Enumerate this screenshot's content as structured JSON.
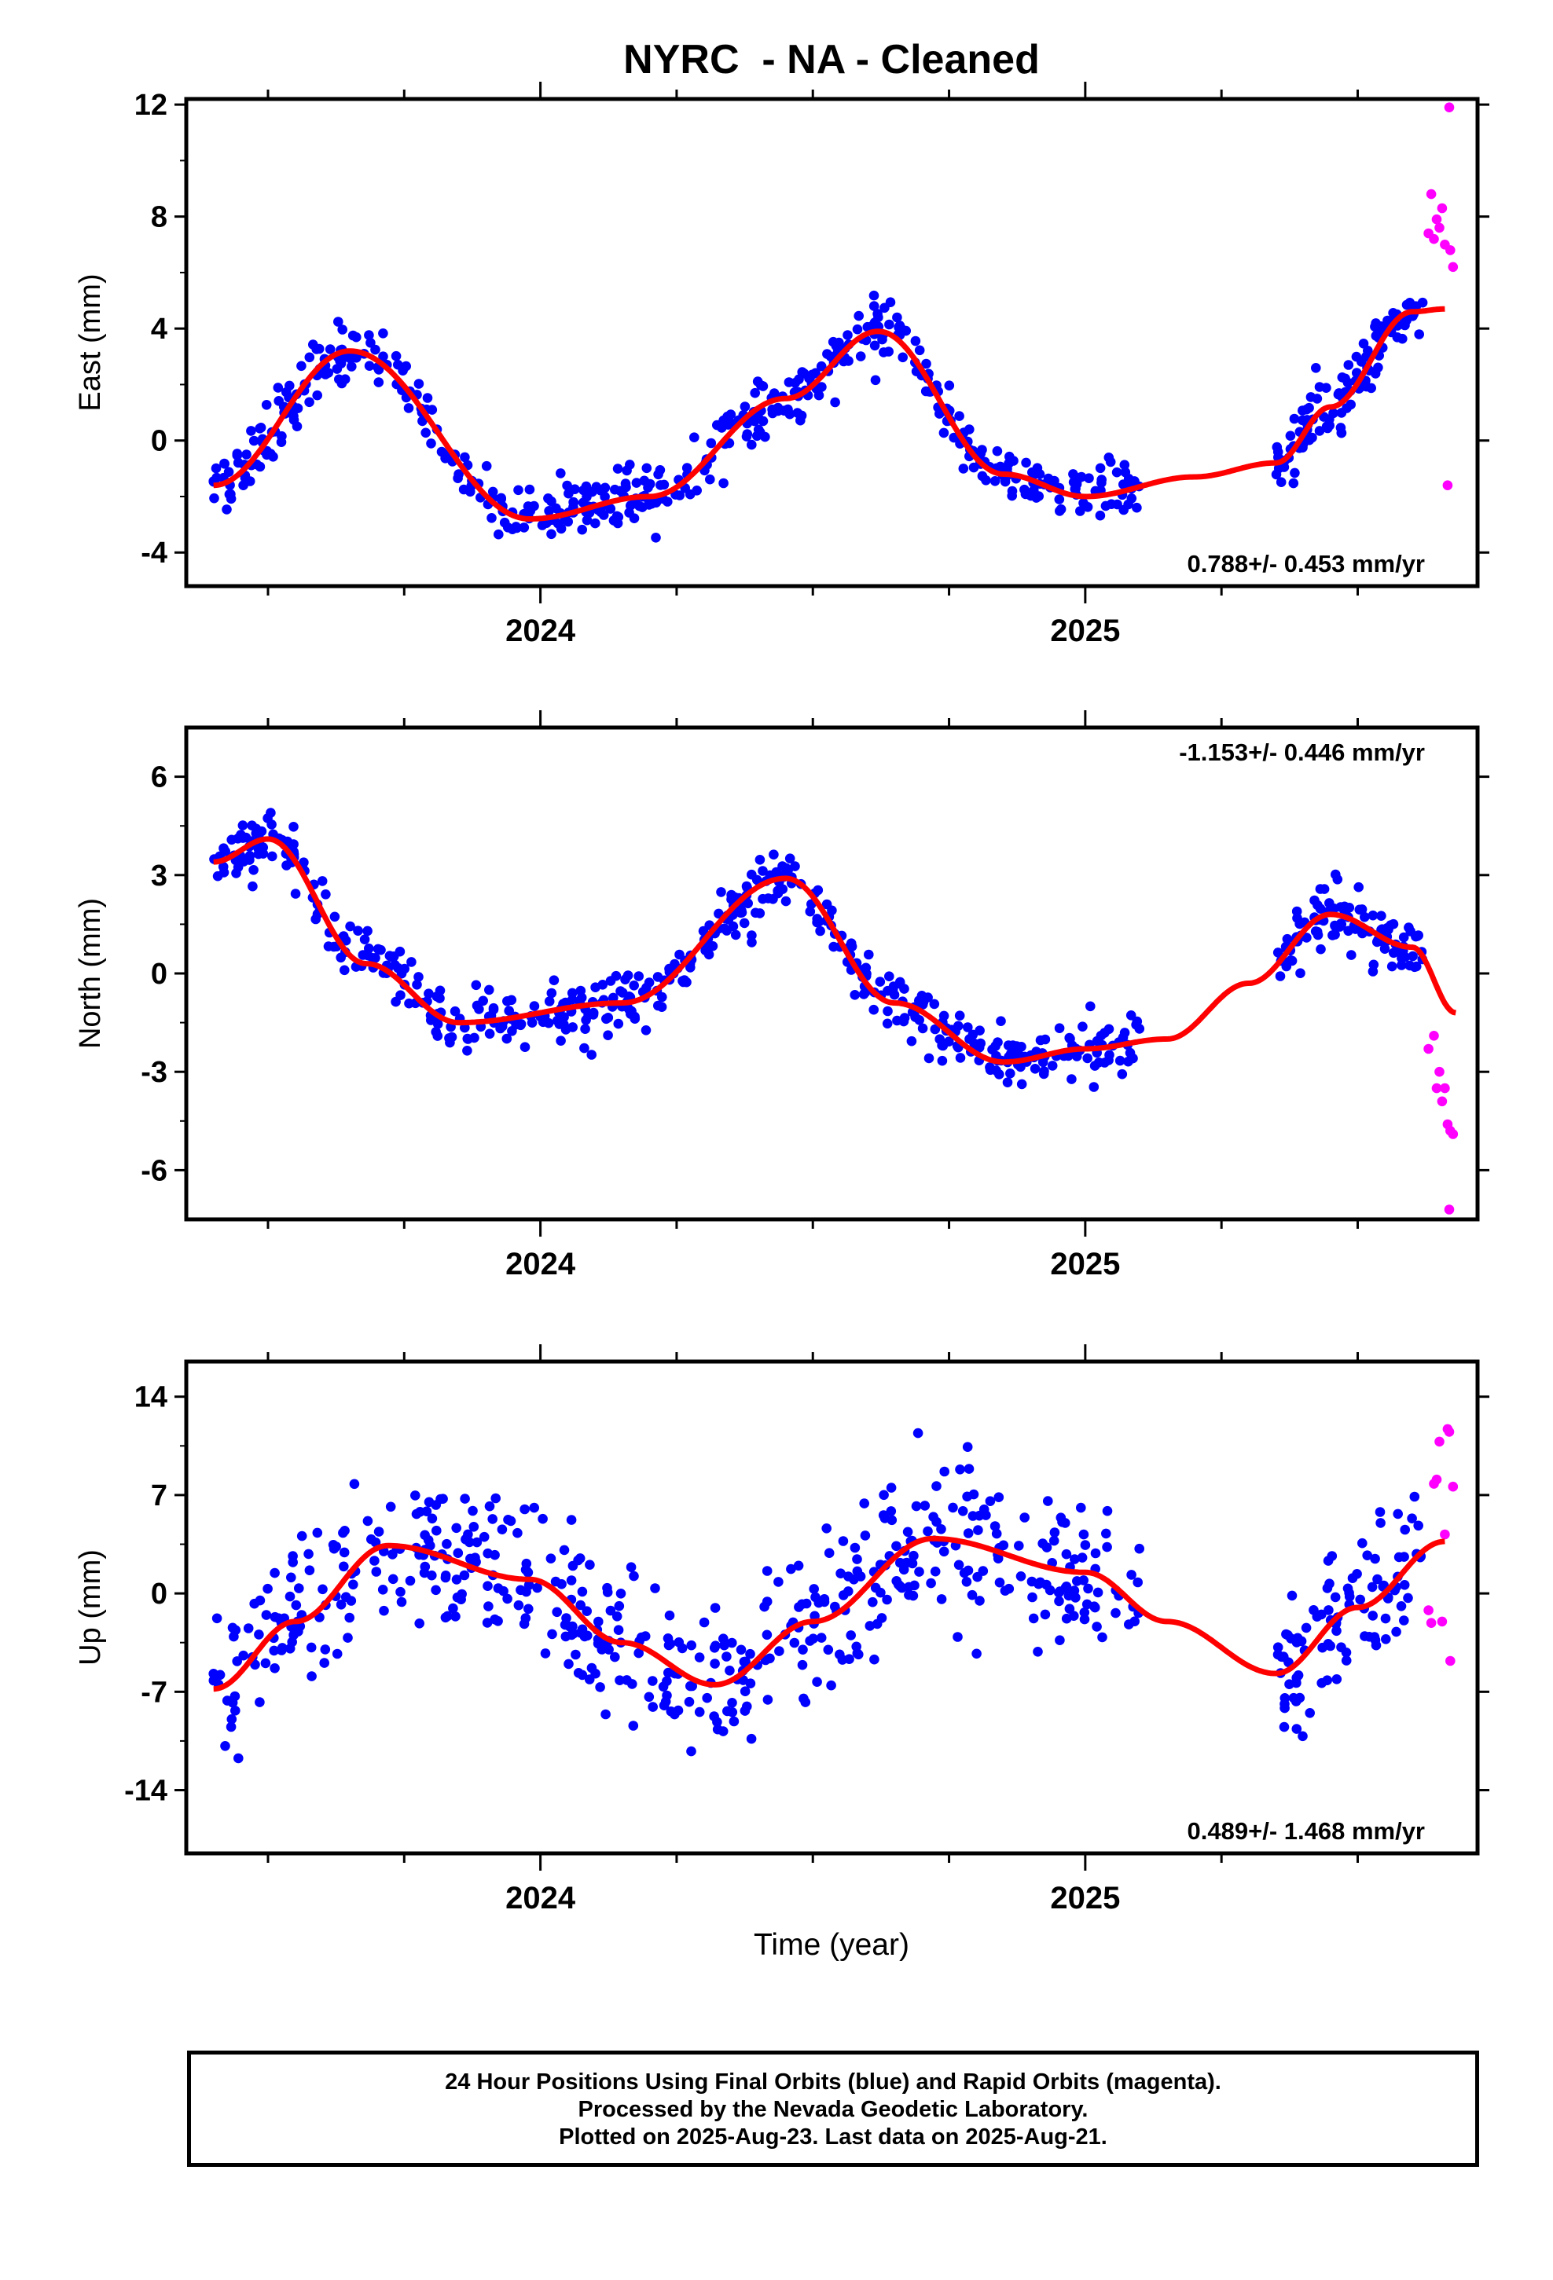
{
  "title": "NYRC  - NA - Cleaned",
  "xlabel": "Time (year)",
  "footer": {
    "line1": "24 Hour Positions Using Final Orbits (blue) and Rapid Orbits (magenta).",
    "line2": "Processed by the Nevada Geodetic Laboratory.",
    "line3": "Plotted on 2025-Aug-23. Last data on 2025-Aug-21."
  },
  "colors": {
    "final": "#0000ff",
    "rapid": "#ff00ff",
    "fit": "#ff0000",
    "frame": "#000000"
  },
  "chart_data": [
    {
      "type": "scatter",
      "ylabel": "East (mm)",
      "rate": "0.788+/- 0.453 mm/yr",
      "rate_position": "bottom-right",
      "xlim": [
        2023.35,
        2025.72
      ],
      "ylim": [
        -5.2,
        12.2
      ],
      "yticks": [
        -4,
        0,
        4,
        8,
        12
      ],
      "yticklabels": [
        "-4",
        "0",
        "4",
        "8",
        "12"
      ],
      "xticks": [
        2024,
        2025
      ],
      "xticklabels": [
        "2024",
        "2025"
      ],
      "fit": {
        "x": [
          2023.4,
          2023.65,
          2023.98,
          2024.2,
          2024.45,
          2024.62,
          2024.85,
          2025.0,
          2025.2,
          2025.35,
          2025.45,
          2025.6,
          2025.66
        ],
        "y": [
          -1.6,
          3.2,
          -2.8,
          -2.0,
          1.5,
          3.9,
          -1.2,
          -2.0,
          -1.3,
          -0.8,
          1.2,
          4.6,
          4.7
        ]
      },
      "final_points": {
        "x_range": [
          2023.4,
          2025.1
        ],
        "gap": [
          2025.1,
          2025.35
        ],
        "x_range2": [
          2025.35,
          2025.62
        ],
        "scatter": 0.9,
        "count": 620
      },
      "rapid_points": [
        [
          2025.63,
          7.4
        ],
        [
          2025.635,
          8.8
        ],
        [
          2025.64,
          7.2
        ],
        [
          2025.645,
          7.9
        ],
        [
          2025.65,
          7.6
        ],
        [
          2025.655,
          8.3
        ],
        [
          2025.66,
          7.0
        ],
        [
          2025.665,
          -1.6
        ],
        [
          2025.668,
          11.9
        ],
        [
          2025.67,
          6.8
        ],
        [
          2025.675,
          6.2
        ]
      ]
    },
    {
      "type": "scatter",
      "ylabel": "North (mm)",
      "rate": "-1.153+/- 0.446 mm/yr",
      "rate_position": "top-right",
      "xlim": [
        2023.35,
        2025.72
      ],
      "ylim": [
        -7.5,
        7.5
      ],
      "yticks": [
        -6,
        -3,
        0,
        3,
        6
      ],
      "yticklabels": [
        "-6",
        "-3",
        "0",
        "3",
        "6"
      ],
      "xticks": [
        2024,
        2025
      ],
      "xticklabels": [
        "2024",
        "2025"
      ],
      "fit": {
        "x": [
          2023.4,
          2023.5,
          2023.68,
          2023.85,
          2024.15,
          2024.45,
          2024.65,
          2024.85,
          2025.0,
          2025.15,
          2025.3,
          2025.45,
          2025.6,
          2025.68
        ],
        "y": [
          3.4,
          4.1,
          0.3,
          -1.5,
          -0.9,
          2.9,
          -0.9,
          -2.7,
          -2.3,
          -2.0,
          -0.3,
          1.8,
          0.8,
          -1.2
        ]
      },
      "final_points": {
        "x_range": [
          2023.4,
          2025.1
        ],
        "gap": [
          2025.1,
          2025.35
        ],
        "x_range2": [
          2025.35,
          2025.62
        ],
        "scatter": 0.75,
        "count": 620
      },
      "rapid_points": [
        [
          2025.63,
          -2.3
        ],
        [
          2025.64,
          -1.9
        ],
        [
          2025.645,
          -3.5
        ],
        [
          2025.65,
          -3.0
        ],
        [
          2025.655,
          -3.9
        ],
        [
          2025.66,
          -3.5
        ],
        [
          2025.665,
          -4.6
        ],
        [
          2025.668,
          -7.2
        ],
        [
          2025.67,
          -4.8
        ],
        [
          2025.675,
          -4.9
        ]
      ]
    },
    {
      "type": "scatter",
      "ylabel": "Up (mm)",
      "rate": "0.489+/- 1.468 mm/yr",
      "rate_position": "bottom-right",
      "xlim": [
        2023.35,
        2025.72
      ],
      "ylim": [
        -18.5,
        16.5
      ],
      "yticks": [
        -14,
        -7,
        0,
        7,
        14
      ],
      "yticklabels": [
        "-14",
        "-7",
        "0",
        "7",
        "14"
      ],
      "xticks": [
        2024,
        2025
      ],
      "xticklabels": [
        "2024",
        "2025"
      ],
      "fit": {
        "x": [
          2023.4,
          2023.55,
          2023.72,
          2023.98,
          2024.15,
          2024.32,
          2024.5,
          2024.72,
          2025.0,
          2025.15,
          2025.35,
          2025.5,
          2025.66
        ],
        "y": [
          -6.8,
          -2.0,
          3.4,
          1.0,
          -3.5,
          -6.5,
          -2.0,
          3.9,
          1.5,
          -2.0,
          -5.7,
          -1.0,
          3.7
        ]
      },
      "final_points": {
        "x_range": [
          2023.4,
          2025.1
        ],
        "gap": [
          2025.1,
          2025.35
        ],
        "x_range2": [
          2025.35,
          2025.62
        ],
        "scatter": 4.3,
        "count": 620
      },
      "rapid_points": [
        [
          2025.63,
          -1.2
        ],
        [
          2025.635,
          -2.1
        ],
        [
          2025.64,
          7.8
        ],
        [
          2025.645,
          8.1
        ],
        [
          2025.65,
          10.8
        ],
        [
          2025.655,
          -2.0
        ],
        [
          2025.66,
          4.2
        ],
        [
          2025.665,
          11.7
        ],
        [
          2025.668,
          11.5
        ],
        [
          2025.67,
          -4.8
        ],
        [
          2025.675,
          7.6
        ]
      ]
    }
  ]
}
